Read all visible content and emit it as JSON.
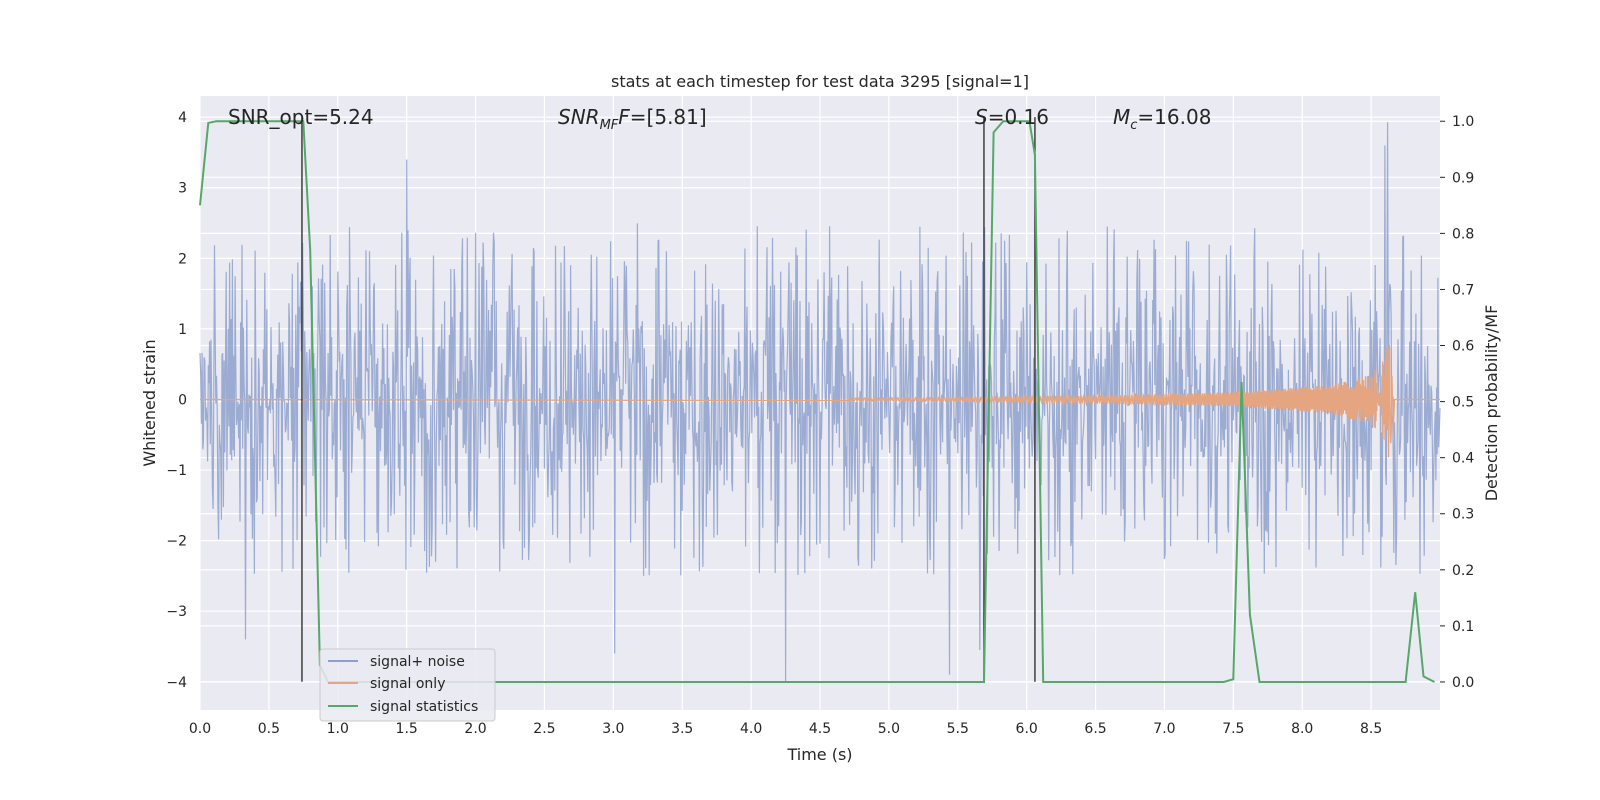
{
  "chart_data": {
    "type": "line",
    "title": "stats at each timestep for test data 3295 [signal=1]",
    "xlabel": "Time (s)",
    "ylabel_left": "Whitened strain",
    "ylabel_right": "Detection probability/MF",
    "xlim": [
      0.0,
      9.0
    ],
    "ylim_left": [
      -4.4,
      4.3
    ],
    "ylim_right": [
      -0.05,
      1.045
    ],
    "x_ticks": [
      "0.0",
      "0.5",
      "1.0",
      "1.5",
      "2.0",
      "2.5",
      "3.0",
      "3.5",
      "4.0",
      "4.5",
      "5.0",
      "5.5",
      "6.0",
      "6.5",
      "7.0",
      "7.5",
      "8.0",
      "8.5"
    ],
    "y_ticks_left": [
      "4",
      "3",
      "2",
      "1",
      "0",
      "−1",
      "−2",
      "−3",
      "−4"
    ],
    "y_ticks_right": [
      "1.0",
      "0.9",
      "0.8",
      "0.7",
      "0.6",
      "0.5",
      "0.4",
      "0.3",
      "0.2",
      "0.1",
      "0.0"
    ],
    "grid": true,
    "legend_position": "lower-left",
    "annotations": [
      {
        "label": "SNR_opt",
        "value": "=5.24"
      },
      {
        "label": "SNR",
        "sub": "MF",
        "value": "=[5.81]"
      },
      {
        "label": "S",
        "value": "=0.16"
      },
      {
        "label": "M",
        "sub": "c",
        "value": "=16.08"
      }
    ],
    "vlines_x": [
      0.74,
      5.69,
      6.06
    ],
    "series": [
      {
        "name": "signal+ noise",
        "color": "#8da0cb",
        "axis": "left",
        "kind": "noise",
        "envelope": [
          -2.0,
          2.4
        ],
        "extreme_peaks": [
          [
            8.62,
            3.93
          ],
          [
            8.6,
            3.6
          ],
          [
            1.5,
            3.4
          ],
          [
            0.33,
            -3.4
          ],
          [
            3.01,
            -3.6
          ],
          [
            4.25,
            -4.0
          ],
          [
            5.44,
            -3.9
          ],
          [
            5.66,
            -3.55
          ]
        ]
      },
      {
        "name": "signal only",
        "color": "#e5a580",
        "axis": "left",
        "kind": "chirp",
        "x": [
          4.7,
          5.5,
          6.5,
          7.5,
          8.2,
          8.5,
          8.6,
          8.64,
          8.66
        ],
        "amplitude": [
          0.02,
          0.03,
          0.05,
          0.1,
          0.2,
          0.35,
          0.6,
          0.94,
          0.0
        ]
      },
      {
        "name": "signal statistics",
        "color": "#55a868",
        "axis": "right",
        "x": [
          0.0,
          0.06,
          0.12,
          0.72,
          0.75,
          0.8,
          0.87,
          0.93,
          5.69,
          5.76,
          5.83,
          6.02,
          6.06,
          6.12,
          7.43,
          7.5,
          7.56,
          7.62,
          7.69,
          8.75,
          8.82,
          8.88,
          8.96
        ],
        "y": [
          0.85,
          0.997,
          1.0,
          1.0,
          1.0,
          0.77,
          0.03,
          0.0,
          0.0,
          0.98,
          1.0,
          1.0,
          0.94,
          0.0,
          0.0,
          0.005,
          0.535,
          0.12,
          0.0,
          0.0,
          0.16,
          0.01,
          0.0
        ]
      }
    ]
  },
  "colors": {
    "axes_bg": "#eaeaf2",
    "grid": "#ffffff",
    "vline": "#333333",
    "text": "#262626"
  }
}
